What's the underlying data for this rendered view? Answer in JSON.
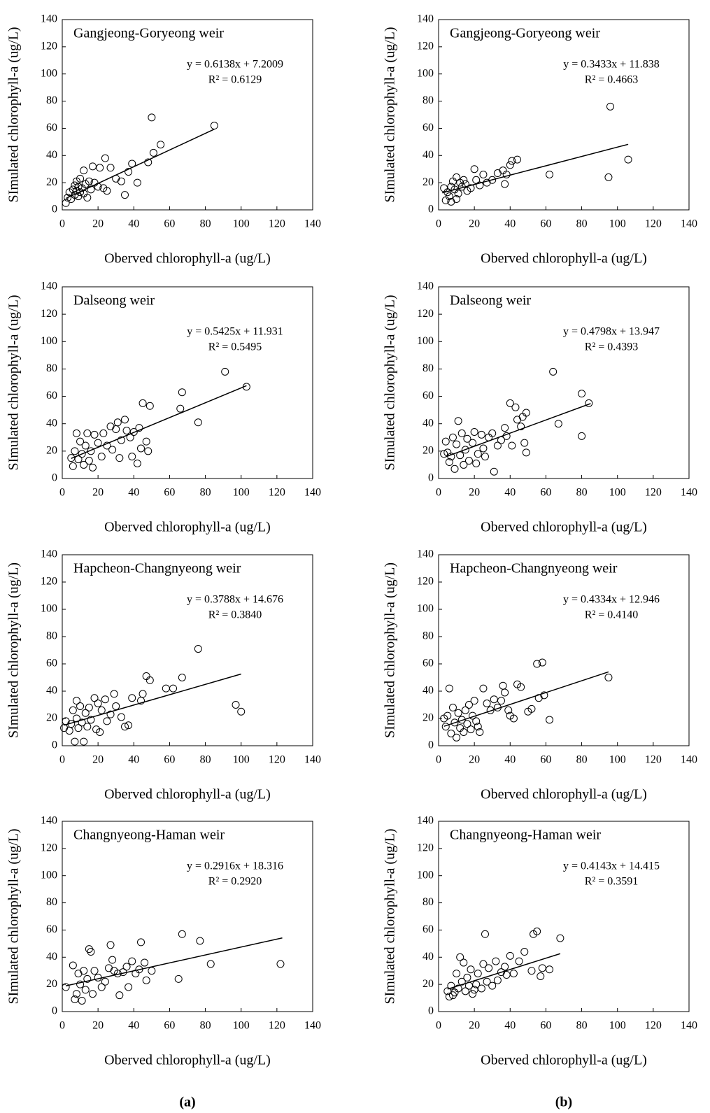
{
  "panel_labels": [
    "(a)",
    "(b)"
  ],
  "chart_data": [
    {
      "type": "scatter",
      "title": "Gangjeong-Goryeong weir",
      "xlabel": "Oberved chlorophyll-a (ug/L)",
      "ylabel": "SImulated chlorophyll-a (ug/L)",
      "x": [
        2,
        3,
        4,
        5,
        6,
        7,
        7,
        8,
        8,
        9,
        9,
        10,
        10,
        11,
        12,
        12,
        13,
        14,
        15,
        16,
        17,
        18,
        20,
        21,
        23,
        24,
        25,
        27,
        30,
        33,
        35,
        37,
        39,
        42,
        48,
        50,
        51,
        55,
        85
      ],
      "values": [
        5,
        9,
        13,
        8,
        15,
        11,
        18,
        14,
        21,
        10,
        17,
        13,
        23,
        16,
        29,
        12,
        19,
        9,
        21,
        15,
        32,
        20,
        17,
        31,
        16,
        38,
        14,
        31,
        23,
        21,
        11,
        28,
        34,
        20,
        35,
        68,
        42,
        48,
        62
      ],
      "fit": {
        "equation": "y = 0.6138x + 7.2009",
        "r2": "R² = 0.6129",
        "slope": 0.6138,
        "intercept": 7.2009,
        "x": [
          2,
          85
        ]
      },
      "xlim": [
        0,
        140
      ],
      "ylim": [
        0,
        140
      ],
      "xticks": [
        0,
        20,
        40,
        60,
        80,
        100,
        120,
        140
      ],
      "yticks": [
        0,
        20,
        40,
        60,
        80,
        100,
        120,
        140
      ]
    },
    {
      "type": "scatter",
      "title": "Gangjeong-Goryeong weir",
      "xlabel": "Oberved chlorophyll-a (ug/L)",
      "ylabel": "SImulated chlorophyll-a (ug/L)",
      "x": [
        3,
        4,
        5,
        6,
        7,
        7,
        8,
        9,
        10,
        10,
        11,
        12,
        13,
        14,
        15,
        16,
        18,
        20,
        21,
        23,
        25,
        27,
        30,
        33,
        36,
        37,
        38,
        40,
        41,
        44,
        62,
        95,
        96,
        106
      ],
      "values": [
        16,
        7,
        13,
        10,
        17,
        6,
        21,
        15,
        24,
        8,
        12,
        20,
        17,
        22,
        19,
        14,
        16,
        30,
        22,
        18,
        26,
        20,
        22,
        27,
        29,
        19,
        26,
        33,
        36,
        37,
        26,
        24,
        76,
        37
      ],
      "fit": {
        "equation": "y = 0.3433x + 11.838",
        "r2": "R² = 0.4663",
        "slope": 0.3433,
        "intercept": 11.838,
        "x": [
          2,
          106
        ]
      },
      "xlim": [
        0,
        140
      ],
      "ylim": [
        0,
        140
      ],
      "xticks": [
        0,
        20,
        40,
        60,
        80,
        100,
        120,
        140
      ],
      "yticks": [
        0,
        20,
        40,
        60,
        80,
        100,
        120,
        140
      ]
    },
    {
      "type": "scatter",
      "title": "Dalseong weir",
      "xlabel": "Oberved chlorophyll-a (ug/L)",
      "ylabel": "SImulated chlorophyll-a (ug/L)",
      "x": [
        5,
        6,
        7,
        8,
        9,
        10,
        11,
        12,
        13,
        14,
        15,
        16,
        17,
        18,
        20,
        22,
        23,
        25,
        27,
        28,
        30,
        31,
        32,
        33,
        35,
        36,
        38,
        39,
        40,
        42,
        43,
        44,
        45,
        47,
        48,
        49,
        66,
        67,
        76,
        91,
        103
      ],
      "values": [
        15,
        9,
        20,
        33,
        14,
        27,
        18,
        10,
        24,
        33,
        13,
        20,
        8,
        32,
        26,
        16,
        33,
        24,
        38,
        21,
        36,
        41,
        15,
        28,
        43,
        35,
        30,
        16,
        34,
        11,
        37,
        22,
        55,
        27,
        20,
        53,
        51,
        63,
        41,
        78,
        67
      ],
      "fit": {
        "equation": "y = 0.5425x + 11.931",
        "r2": "R² = 0.5495",
        "slope": 0.5425,
        "intercept": 11.931,
        "x": [
          5,
          103
        ]
      },
      "xlim": [
        0,
        140
      ],
      "ylim": [
        0,
        140
      ],
      "xticks": [
        0,
        20,
        40,
        60,
        80,
        100,
        120,
        140
      ],
      "yticks": [
        0,
        20,
        40,
        60,
        80,
        100,
        120,
        140
      ]
    },
    {
      "type": "scatter",
      "title": "Dalseong weir",
      "xlabel": "Oberved chlorophyll-a (ug/L)",
      "ylabel": "SImulated chlorophyll-a (ug/L)",
      "x": [
        3,
        4,
        5,
        6,
        7,
        8,
        9,
        10,
        11,
        12,
        13,
        14,
        15,
        16,
        17,
        19,
        20,
        21,
        22,
        24,
        25,
        26,
        28,
        30,
        31,
        33,
        35,
        37,
        38,
        40,
        41,
        43,
        44,
        46,
        47,
        48,
        49,
        49,
        64,
        67,
        80,
        80,
        84
      ],
      "values": [
        18,
        27,
        19,
        12,
        16,
        30,
        7,
        25,
        42,
        17,
        33,
        10,
        21,
        29,
        13,
        26,
        34,
        11,
        18,
        32,
        22,
        16,
        30,
        33,
        5,
        24,
        28,
        37,
        31,
        55,
        24,
        52,
        43,
        38,
        45,
        26,
        48,
        19,
        78,
        40,
        62,
        31,
        55
      ],
      "fit": {
        "equation": "y = 0.4798x + 13.947",
        "r2": "R² = 0.4393",
        "slope": 0.4798,
        "intercept": 13.947,
        "x": [
          4,
          85
        ]
      },
      "xlim": [
        0,
        140
      ],
      "ylim": [
        0,
        140
      ],
      "xticks": [
        0,
        20,
        40,
        60,
        80,
        100,
        120,
        140
      ],
      "yticks": [
        0,
        20,
        40,
        60,
        80,
        100,
        120,
        140
      ]
    },
    {
      "type": "scatter",
      "title": "Hapcheon-Changnyeong weir",
      "xlabel": "Oberved chlorophyll-a (ug/L)",
      "ylabel": "SImulated chlorophyll-a (ug/L)",
      "x": [
        1,
        2,
        4,
        5,
        6,
        7,
        8,
        8,
        9,
        10,
        11,
        12,
        13,
        14,
        15,
        16,
        18,
        19,
        20,
        21,
        22,
        24,
        25,
        27,
        29,
        30,
        33,
        35,
        37,
        39,
        44,
        45,
        47,
        49,
        58,
        62,
        67,
        76,
        97,
        100
      ],
      "values": [
        13,
        18,
        11,
        16,
        26,
        3,
        33,
        20,
        13,
        29,
        17,
        3,
        24,
        14,
        28,
        19,
        35,
        12,
        31,
        10,
        26,
        34,
        18,
        23,
        38,
        29,
        21,
        14,
        15,
        35,
        33,
        38,
        51,
        48,
        42,
        42,
        50,
        71,
        30,
        25
      ],
      "fit": {
        "equation": "y = 0.3788x + 14.676",
        "r2": "R² = 0.3840",
        "slope": 0.3788,
        "intercept": 14.676,
        "x": [
          1,
          100
        ]
      },
      "xlim": [
        0,
        140
      ],
      "ylim": [
        0,
        140
      ],
      "xticks": [
        0,
        20,
        40,
        60,
        80,
        100,
        120,
        140
      ],
      "yticks": [
        0,
        20,
        40,
        60,
        80,
        100,
        120,
        140
      ]
    },
    {
      "type": "scatter",
      "title": "Hapcheon-Changnyeong weir",
      "xlabel": "Oberved chlorophyll-a (ug/L)",
      "ylabel": "SImulated chlorophyll-a (ug/L)",
      "x": [
        3,
        4,
        5,
        6,
        7,
        8,
        9,
        10,
        11,
        12,
        13,
        14,
        15,
        16,
        17,
        18,
        19,
        20,
        21,
        22,
        23,
        25,
        27,
        29,
        31,
        33,
        35,
        36,
        37,
        39,
        40,
        42,
        44,
        46,
        50,
        52,
        55,
        56,
        58,
        59,
        62,
        95
      ],
      "values": [
        20,
        14,
        22,
        42,
        9,
        28,
        17,
        6,
        24,
        13,
        19,
        10,
        26,
        16,
        30,
        12,
        22,
        33,
        18,
        14,
        10,
        42,
        31,
        26,
        34,
        28,
        33,
        44,
        39,
        26,
        22,
        20,
        45,
        43,
        25,
        27,
        60,
        35,
        61,
        37,
        19,
        50
      ],
      "fit": {
        "equation": "y = 0.4334x + 12.946",
        "r2": "R² = 0.4140",
        "slope": 0.4334,
        "intercept": 12.946,
        "x": [
          3,
          95
        ]
      },
      "xlim": [
        0,
        140
      ],
      "ylim": [
        0,
        140
      ],
      "xticks": [
        0,
        20,
        40,
        60,
        80,
        100,
        120,
        140
      ],
      "yticks": [
        0,
        20,
        40,
        60,
        80,
        100,
        120,
        140
      ]
    },
    {
      "type": "scatter",
      "title": "Changnyeong-Haman weir",
      "xlabel": "Oberved chlorophyll-a (ug/L)",
      "ylabel": "SImulated chlorophyll-a (ug/L)",
      "x": [
        2,
        6,
        7,
        8,
        9,
        10,
        11,
        12,
        13,
        14,
        15,
        16,
        17,
        18,
        20,
        22,
        24,
        26,
        27,
        28,
        29,
        31,
        32,
        34,
        36,
        37,
        39,
        41,
        43,
        44,
        46,
        47,
        50,
        65,
        67,
        77,
        83,
        122
      ],
      "values": [
        18,
        34,
        9,
        13,
        28,
        20,
        8,
        30,
        16,
        24,
        46,
        44,
        13,
        30,
        25,
        18,
        22,
        32,
        49,
        38,
        30,
        28,
        12,
        29,
        33,
        18,
        37,
        28,
        31,
        51,
        36,
        23,
        30,
        24,
        57,
        52,
        35,
        35
      ],
      "fit": {
        "equation": "y = 0.2916x + 18.316",
        "r2": "R² = 0.2920",
        "slope": 0.2916,
        "intercept": 18.316,
        "x": [
          2,
          123
        ]
      },
      "xlim": [
        0,
        140
      ],
      "ylim": [
        0,
        140
      ],
      "xticks": [
        0,
        20,
        40,
        60,
        80,
        100,
        120,
        140
      ],
      "yticks": [
        0,
        20,
        40,
        60,
        80,
        100,
        120,
        140
      ]
    },
    {
      "type": "scatter",
      "title": "Changnyeong-Haman weir",
      "xlabel": "Oberved chlorophyll-a (ug/L)",
      "ylabel": "SImulated chlorophyll-a (ug/L)",
      "x": [
        5,
        6,
        7,
        8,
        9,
        10,
        11,
        12,
        13,
        14,
        15,
        16,
        17,
        18,
        19,
        20,
        21,
        22,
        24,
        25,
        26,
        27,
        28,
        30,
        32,
        33,
        35,
        37,
        38,
        40,
        42,
        45,
        48,
        52,
        53,
        55,
        57,
        58,
        62,
        68
      ],
      "values": [
        15,
        11,
        19,
        12,
        14,
        28,
        17,
        40,
        22,
        36,
        15,
        25,
        19,
        31,
        13,
        16,
        20,
        28,
        17,
        35,
        57,
        22,
        32,
        19,
        37,
        23,
        29,
        33,
        27,
        41,
        28,
        37,
        44,
        30,
        57,
        59,
        26,
        32,
        31,
        54
      ],
      "fit": {
        "equation": "y = 0.4143x + 14.415",
        "r2": "R² = 0.3591",
        "slope": 0.4143,
        "intercept": 14.415,
        "x": [
          5,
          68
        ]
      },
      "xlim": [
        0,
        140
      ],
      "ylim": [
        0,
        140
      ],
      "xticks": [
        0,
        20,
        40,
        60,
        80,
        100,
        120,
        140
      ],
      "yticks": [
        0,
        20,
        40,
        60,
        80,
        100,
        120,
        140
      ]
    }
  ]
}
